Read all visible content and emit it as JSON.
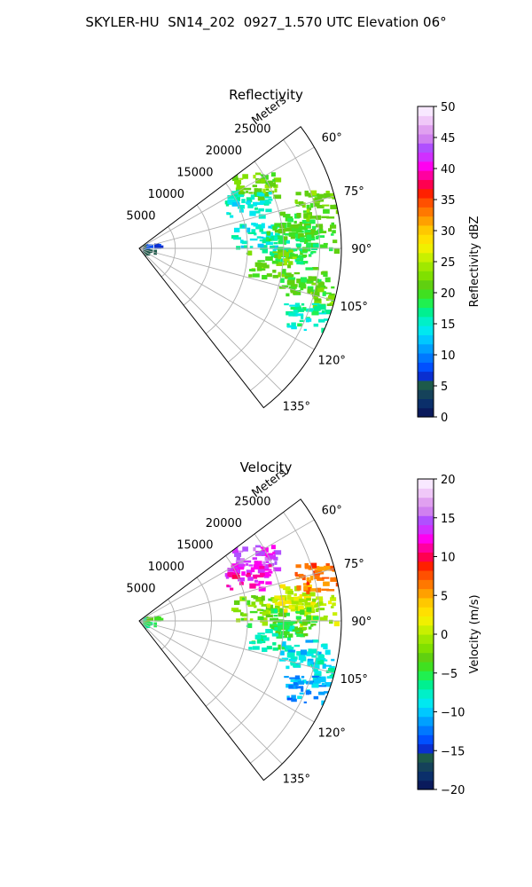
{
  "suptitle": "SKYLER-HU  SN14_202  0927_1.570 UTC Elevation 06°",
  "panels": [
    {
      "id": "reflectivity",
      "title": "Reflectivity",
      "range_label": "Meters",
      "range_ticks": [
        "5000",
        "10000",
        "15000",
        "20000",
        "25000"
      ],
      "azimuth_ticks": [
        "60°",
        "75°",
        "90°",
        "105°",
        "120°",
        "135°"
      ],
      "colorbar": {
        "label": "Reflectivity dBZ",
        "min": 0,
        "max": 50,
        "ticks": [
          "0",
          "5",
          "10",
          "15",
          "20",
          "25",
          "30",
          "35",
          "40",
          "45",
          "50"
        ],
        "colors": [
          "#0a1a5c",
          "#0b2f6a",
          "#15425a",
          "#1d5a4a",
          "#0a2fd0",
          "#0050ff",
          "#0078ff",
          "#00a0ff",
          "#00c8ff",
          "#00e8f0",
          "#00f0c8",
          "#00f090",
          "#20f050",
          "#40e020",
          "#60d010",
          "#80e000",
          "#a0e800",
          "#c8f000",
          "#f0f000",
          "#ffe000",
          "#ffc800",
          "#ffa000",
          "#ff7800",
          "#ff5000",
          "#ff2000",
          "#ff0050",
          "#ff00a0",
          "#ff00f0",
          "#d030ff",
          "#b050ff",
          "#d080f0",
          "#e0a0f0",
          "#f0c8f8",
          "#f8e8ff"
        ]
      }
    },
    {
      "id": "velocity",
      "title": "Velocity",
      "range_label": "Meters",
      "range_ticks": [
        "5000",
        "10000",
        "15000",
        "20000",
        "25000"
      ],
      "azimuth_ticks": [
        "60°",
        "75°",
        "90°",
        "105°",
        "120°",
        "135°"
      ],
      "colorbar": {
        "label": "Velocity (m/s)",
        "min": -20,
        "max": 20,
        "ticks": [
          "−20",
          "−15",
          "−10",
          "−5",
          "0",
          "5",
          "10",
          "15",
          "20"
        ],
        "colors": [
          "#0a1a5c",
          "#0b2f6a",
          "#15425a",
          "#1d5a4a",
          "#0a2fd0",
          "#0050ff",
          "#0078ff",
          "#00a0ff",
          "#00c8ff",
          "#00e8f0",
          "#00f0c8",
          "#00f090",
          "#20f050",
          "#40e020",
          "#60d010",
          "#80e000",
          "#a0e800",
          "#c8f000",
          "#f0f000",
          "#ffe000",
          "#ffc800",
          "#ffa000",
          "#ff7800",
          "#ff5000",
          "#ff2000",
          "#ff0050",
          "#ff00a0",
          "#ff00f0",
          "#d030ff",
          "#b050ff",
          "#d080f0",
          "#e0a0f0",
          "#f0c8f8",
          "#f8e8ff"
        ]
      }
    }
  ],
  "chart_data": [
    {
      "type": "heatmap",
      "projection": "polar sector",
      "title": "Reflectivity",
      "radial_label": "Meters",
      "radial_range": [
        0,
        28000
      ],
      "azimuth_range_deg": [
        53,
        142
      ],
      "colorbar_label": "Reflectivity dBZ",
      "value_range": [
        0,
        50
      ],
      "echoes": [
        {
          "az": 84,
          "r": 16000,
          "value": 15
        },
        {
          "az": 81,
          "r": 21000,
          "value": 20
        },
        {
          "az": 76,
          "r": 25500,
          "value": 22
        },
        {
          "az": 86,
          "r": 24000,
          "value": 20
        },
        {
          "az": 90,
          "r": 21000,
          "value": 18
        },
        {
          "az": 96,
          "r": 18000,
          "value": 22
        },
        {
          "az": 101,
          "r": 23000,
          "value": 20
        },
        {
          "az": 104,
          "r": 27000,
          "value": 22
        },
        {
          "az": 112,
          "r": 25000,
          "value": 16
        },
        {
          "az": 60,
          "r": 18000,
          "value": 22
        },
        {
          "az": 67,
          "r": 16000,
          "value": 15
        },
        {
          "az": 90,
          "r": 1500,
          "value": 6
        }
      ]
    },
    {
      "type": "heatmap",
      "projection": "polar sector",
      "title": "Velocity",
      "radial_label": "Meters",
      "radial_range": [
        0,
        28000
      ],
      "azimuth_range_deg": [
        53,
        142
      ],
      "colorbar_label": "Velocity (m/s)",
      "value_range": [
        -20,
        20
      ],
      "echoes": [
        {
          "az": 84,
          "r": 16000,
          "value": -2
        },
        {
          "az": 81,
          "r": 21000,
          "value": 1
        },
        {
          "az": 76,
          "r": 25500,
          "value": 7
        },
        {
          "az": 86,
          "r": 24000,
          "value": 0
        },
        {
          "az": 90,
          "r": 21000,
          "value": -4
        },
        {
          "az": 96,
          "r": 18000,
          "value": -6
        },
        {
          "az": 101,
          "r": 23000,
          "value": -9
        },
        {
          "az": 104,
          "r": 27000,
          "value": -8
        },
        {
          "az": 112,
          "r": 25000,
          "value": -11
        },
        {
          "az": 60,
          "r": 18000,
          "value": 14
        },
        {
          "az": 67,
          "r": 16000,
          "value": 12
        },
        {
          "az": 90,
          "r": 1500,
          "value": -5
        }
      ]
    }
  ]
}
